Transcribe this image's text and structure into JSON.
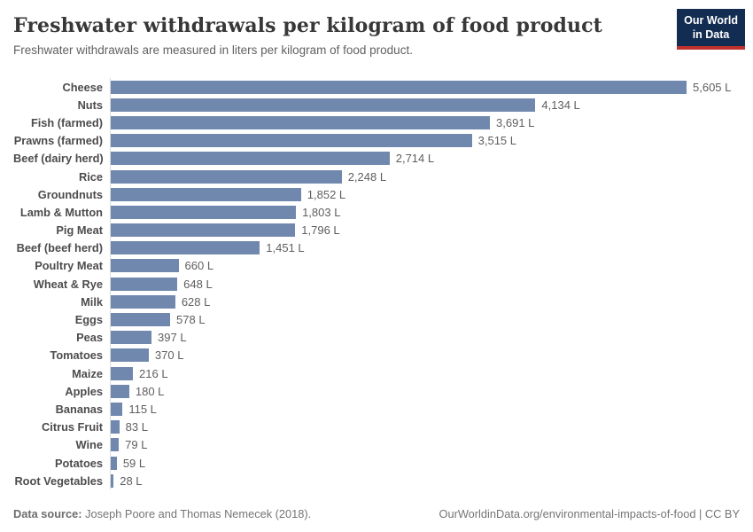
{
  "header": {
    "title": "Freshwater withdrawals per kilogram of food product",
    "subtitle": "Freshwater withdrawals are measured in liters per kilogram of food product.",
    "logo": {
      "line1": "Our World",
      "line2": "in Data",
      "bg_color": "#132c52",
      "stripe_color": "#c0302c"
    }
  },
  "chart_data": {
    "type": "bar",
    "orientation": "horizontal",
    "title": "Freshwater withdrawals per kilogram of food product",
    "subtitle": "Freshwater withdrawals are measured in liters per kilogram of food product.",
    "xlabel": "",
    "ylabel": "",
    "unit": "liters per kilogram",
    "xlim": [
      0,
      5605
    ],
    "grid": false,
    "legend": false,
    "bar_color": "#7088ad",
    "categories": [
      "Cheese",
      "Nuts",
      "Fish (farmed)",
      "Prawns (farmed)",
      "Beef (dairy herd)",
      "Rice",
      "Groundnuts",
      "Lamb & Mutton",
      "Pig Meat",
      "Beef (beef herd)",
      "Poultry Meat",
      "Wheat & Rye",
      "Milk",
      "Eggs",
      "Peas",
      "Tomatoes",
      "Maize",
      "Apples",
      "Bananas",
      "Citrus Fruit",
      "Wine",
      "Potatoes",
      "Root Vegetables"
    ],
    "values": [
      5605,
      4134,
      3691,
      3515,
      2714,
      2248,
      1852,
      1803,
      1796,
      1451,
      660,
      648,
      628,
      578,
      397,
      370,
      216,
      180,
      115,
      83,
      79,
      59,
      28
    ],
    "value_labels": [
      "5,605 L",
      "4,134 L",
      "3,691 L",
      "3,515 L",
      "2,714 L",
      "2,248 L",
      "1,852 L",
      "1,803 L",
      "1,796 L",
      "1,451 L",
      "660 L",
      "648 L",
      "628 L",
      "578 L",
      "397 L",
      "370 L",
      "216 L",
      "180 L",
      "115 L",
      "83 L",
      "79 L",
      "59 L",
      "28 L"
    ]
  },
  "footer": {
    "source_prefix": "Data source:",
    "source_text": " Joseph Poore and Thomas Nemecek (2018).",
    "link_text": "OurWorldinData.org/environmental-impacts-of-food | CC BY"
  }
}
